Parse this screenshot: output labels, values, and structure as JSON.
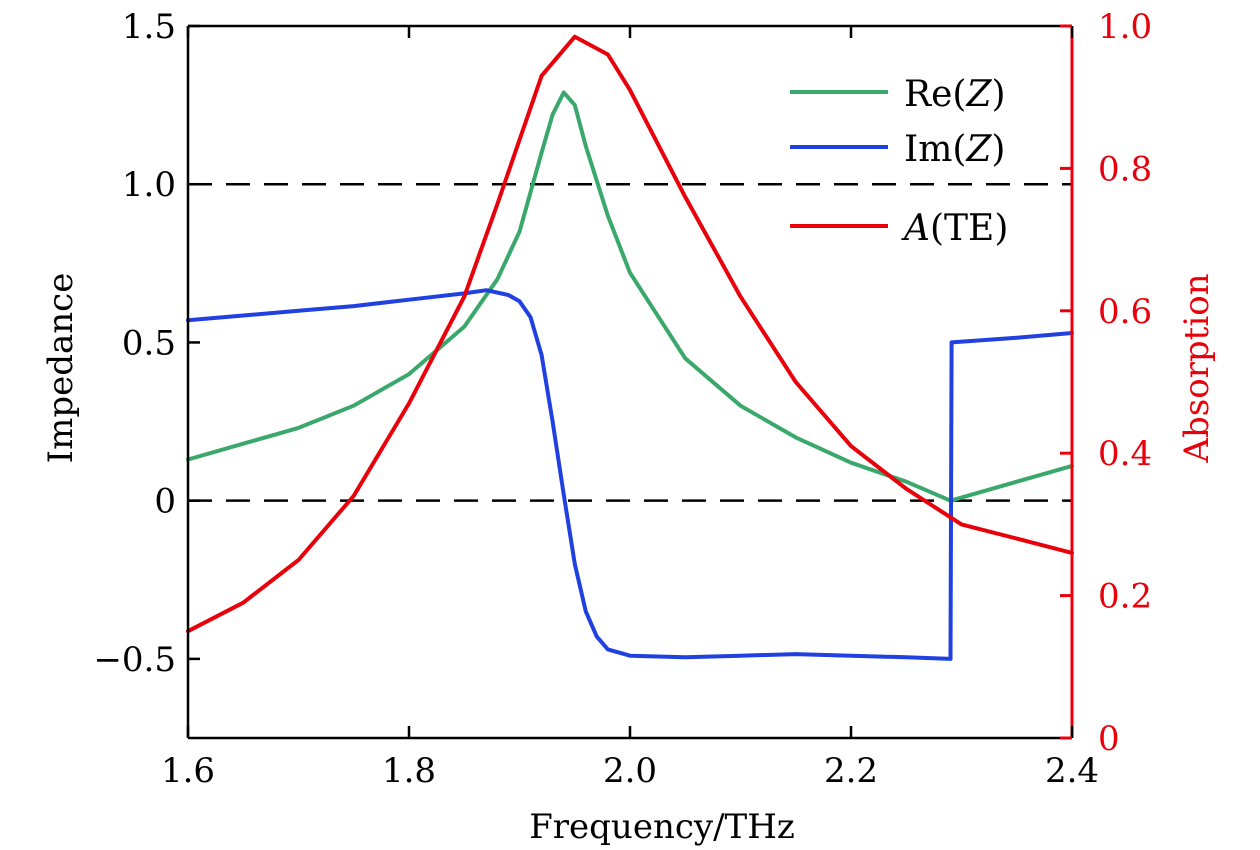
{
  "chart_data": {
    "type": "line",
    "xlabel": "Frequency/THz",
    "ylabel": "Impedance",
    "y2label": "Absorption",
    "xlim": [
      1.6,
      2.4
    ],
    "ylim": [
      -0.75,
      1.5
    ],
    "y2lim": [
      0,
      1.0
    ],
    "x_ticks": [
      1.6,
      1.8,
      2.0,
      2.2,
      2.4
    ],
    "x_tick_labels": [
      "1.6",
      "1.8",
      "2.0",
      "2.2",
      "2.4"
    ],
    "y_ticks": [
      -0.5,
      0,
      0.5,
      1.0,
      1.5
    ],
    "y_tick_labels": [
      "−0.5",
      "0",
      "0.5",
      "1.0",
      "1.5"
    ],
    "y2_ticks": [
      0,
      0.2,
      0.4,
      0.6,
      0.8,
      1.0
    ],
    "y2_tick_labels": [
      "0",
      "0.2",
      "0.4",
      "0.6",
      "0.8",
      "1.0"
    ],
    "reference_lines": [
      0,
      1.0
    ],
    "grid": false,
    "legend_position": "top-right",
    "colors": {
      "re": "#3aa86b",
      "im": "#2040e0",
      "abs": "#e8000b",
      "right_axis": "#e8000b"
    },
    "series": [
      {
        "name": "Re(Z)",
        "axis": "left",
        "x": [
          1.6,
          1.65,
          1.7,
          1.75,
          1.8,
          1.85,
          1.88,
          1.9,
          1.92,
          1.93,
          1.94,
          1.95,
          1.96,
          1.98,
          2.0,
          2.05,
          2.1,
          2.15,
          2.2,
          2.25,
          2.29,
          2.35,
          2.4
        ],
        "y": [
          0.13,
          0.18,
          0.23,
          0.3,
          0.4,
          0.55,
          0.7,
          0.85,
          1.1,
          1.22,
          1.29,
          1.25,
          1.12,
          0.9,
          0.72,
          0.45,
          0.3,
          0.2,
          0.12,
          0.06,
          0.0,
          0.06,
          0.11
        ]
      },
      {
        "name": "Im(Z)",
        "axis": "left",
        "x": [
          1.6,
          1.65,
          1.7,
          1.75,
          1.8,
          1.85,
          1.87,
          1.89,
          1.9,
          1.91,
          1.92,
          1.93,
          1.94,
          1.95,
          1.96,
          1.97,
          1.98,
          2.0,
          2.05,
          2.1,
          2.15,
          2.2,
          2.25,
          2.29,
          2.291,
          2.35,
          2.4
        ],
        "y": [
          0.57,
          0.585,
          0.6,
          0.615,
          0.635,
          0.655,
          0.665,
          0.65,
          0.63,
          0.58,
          0.46,
          0.25,
          0.02,
          -0.2,
          -0.35,
          -0.43,
          -0.47,
          -0.49,
          -0.495,
          -0.49,
          -0.485,
          -0.49,
          -0.495,
          -0.5,
          0.5,
          0.515,
          0.53
        ]
      },
      {
        "name": "A(TE)",
        "axis": "right",
        "x": [
          1.6,
          1.65,
          1.7,
          1.75,
          1.8,
          1.85,
          1.88,
          1.9,
          1.92,
          1.95,
          1.98,
          2.0,
          2.05,
          2.1,
          2.15,
          2.2,
          2.25,
          2.3,
          2.35,
          2.4
        ],
        "y": [
          0.15,
          0.19,
          0.25,
          0.34,
          0.47,
          0.62,
          0.75,
          0.84,
          0.93,
          0.985,
          0.96,
          0.91,
          0.76,
          0.62,
          0.5,
          0.41,
          0.35,
          0.3,
          0.28,
          0.26
        ]
      }
    ]
  },
  "legend": {
    "items": [
      {
        "label": "Re(Z)",
        "color": "#3aa86b"
      },
      {
        "label": "Im(Z)",
        "color": "#2040e0"
      },
      {
        "label": "A(TE)",
        "color": "#e8000b"
      }
    ]
  }
}
